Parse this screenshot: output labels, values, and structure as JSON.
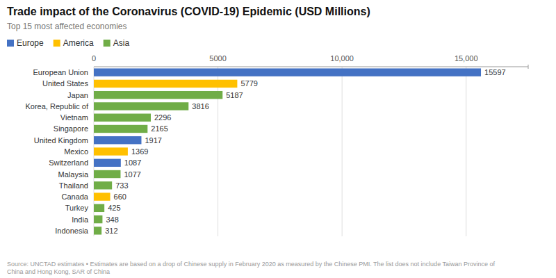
{
  "chart_data": {
    "type": "bar",
    "orientation": "horizontal",
    "title": "Trade impact of the Coronavirus (COVID-19) Epidemic (USD Millions)",
    "subtitle": "Top 15 most affected economies",
    "categories": [
      "European Union",
      "United States",
      "Japan",
      "Korea, Republic of",
      "Vietnam",
      "Singapore",
      "United Kingdom",
      "Mexico",
      "Switzerland",
      "Malaysia",
      "Thailand",
      "Canada",
      "Turkey",
      "India",
      "Indonesia"
    ],
    "series": [
      {
        "name": "Europe",
        "color": "#4472C4",
        "values": [
          15597,
          null,
          null,
          null,
          null,
          null,
          1917,
          null,
          1087,
          null,
          null,
          null,
          null,
          null,
          null
        ]
      },
      {
        "name": "America",
        "color": "#FFC000",
        "values": [
          null,
          5779,
          null,
          null,
          null,
          null,
          null,
          1369,
          null,
          null,
          null,
          660,
          null,
          null,
          null
        ]
      },
      {
        "name": "Asia",
        "color": "#70AD47",
        "values": [
          null,
          null,
          5187,
          3816,
          2296,
          2165,
          null,
          null,
          null,
          1077,
          733,
          null,
          425,
          348,
          312
        ]
      }
    ],
    "xlim": [
      0,
      17500
    ],
    "xticks": [
      0,
      5000,
      {
        "value": 10000,
        "label": "10,000"
      },
      {
        "value": 15000,
        "label": "15,000"
      }
    ],
    "grid": true,
    "legend": "top-left",
    "data_labels": true,
    "footer": "Source: UNCTAD estimates • Estimates are based on a drop of Chinese supply in February 2020 as measured by the Chinese PMI. The list does not include Taiwan Province of\nChina and Hong Kong, SAR of China"
  }
}
